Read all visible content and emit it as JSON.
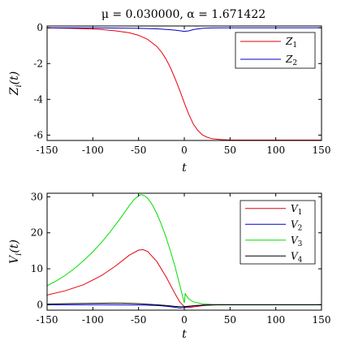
{
  "title": {
    "mu_label": "μ = 0.030000",
    "alpha_label": "α = 1.671422"
  },
  "chart_data": [
    {
      "type": "line",
      "xlabel": "t",
      "ylabel": "Z_i(t)",
      "xlim": [
        -150,
        150
      ],
      "ylim": [
        -6.3,
        0.1
      ],
      "xticks": [
        -150,
        -100,
        -50,
        0,
        50,
        100,
        150
      ],
      "yticks": [
        0,
        -2,
        -4,
        -6
      ],
      "xtick_labels": [
        "-150",
        "-100",
        "-50",
        "0",
        "50",
        "100",
        "150"
      ],
      "ytick_labels": [
        "0",
        "-2",
        "-4",
        "-6"
      ],
      "legend": "top-right",
      "series": [
        {
          "name": "Z",
          "sub": "1",
          "color": "#e8000b",
          "x": [
            -150,
            -125,
            -100,
            -90,
            -75,
            -60,
            -50,
            -40,
            -30,
            -25,
            -20,
            -15,
            -10,
            -5,
            0,
            5,
            10,
            15,
            20,
            25,
            30,
            40,
            50,
            75,
            100,
            150
          ],
          "y": [
            -0.01,
            -0.03,
            -0.07,
            -0.1,
            -0.17,
            -0.28,
            -0.42,
            -0.65,
            -1.05,
            -1.35,
            -1.75,
            -2.25,
            -2.85,
            -3.5,
            -4.2,
            -4.85,
            -5.4,
            -5.75,
            -6.0,
            -6.12,
            -6.2,
            -6.25,
            -6.27,
            -6.28,
            -6.28,
            -6.28
          ]
        },
        {
          "name": "Z",
          "sub": "2",
          "color": "#0000c8",
          "x": [
            -150,
            -100,
            -50,
            -30,
            -20,
            -10,
            0,
            5,
            10,
            20,
            30,
            50,
            100,
            150
          ],
          "y": [
            0,
            -0.005,
            -0.03,
            -0.06,
            -0.09,
            -0.13,
            -0.2,
            -0.17,
            -0.1,
            -0.03,
            -0.01,
            0,
            0,
            0
          ]
        }
      ]
    },
    {
      "type": "line",
      "xlabel": "t",
      "ylabel": "V_i(t)",
      "xlim": [
        -150,
        150
      ],
      "ylim": [
        -1.5,
        31
      ],
      "xticks": [
        -150,
        -100,
        -50,
        0,
        50,
        100,
        150
      ],
      "yticks": [
        0,
        10,
        20,
        30
      ],
      "xtick_labels": [
        "-150",
        "-100",
        "-50",
        "0",
        "50",
        "100",
        "150"
      ],
      "ytick_labels": [
        "0",
        "10",
        "20",
        "30"
      ],
      "legend": "top-right",
      "series": [
        {
          "name": "V",
          "sub": "1",
          "color": "#e8000b",
          "x": [
            -150,
            -130,
            -110,
            -90,
            -75,
            -60,
            -50,
            -45,
            -40,
            -30,
            -20,
            -10,
            -5,
            0,
            5,
            10,
            20,
            30,
            40,
            60,
            100,
            150
          ],
          "y": [
            2.7,
            3.9,
            5.6,
            8.2,
            10.8,
            13.8,
            15.2,
            15.3,
            14.8,
            12.0,
            7.8,
            3.0,
            0.8,
            -0.5,
            -0.8,
            -0.6,
            -0.25,
            -0.05,
            0,
            0,
            0,
            0
          ]
        },
        {
          "name": "V",
          "sub": "2",
          "color": "#0000c8",
          "x": [
            -150,
            -100,
            -50,
            -30,
            -20,
            -10,
            -5,
            0,
            5,
            10,
            20,
            40,
            100,
            150
          ],
          "y": [
            0,
            0,
            -0.05,
            -0.2,
            -0.4,
            -0.7,
            -0.9,
            -0.8,
            -0.5,
            -0.3,
            -0.1,
            0,
            0,
            0
          ]
        },
        {
          "name": "V",
          "sub": "3",
          "color": "#00e000",
          "x": [
            -150,
            -140,
            -130,
            -120,
            -110,
            -100,
            -90,
            -80,
            -70,
            -60,
            -55,
            -50,
            -47,
            -44,
            -40,
            -35,
            -30,
            -25,
            -20,
            -15,
            -10,
            -5,
            0,
            1,
            2,
            5,
            10,
            20,
            30,
            40,
            60,
            100,
            150
          ],
          "y": [
            5.3,
            6.6,
            8.2,
            10.1,
            12.3,
            14.7,
            17.5,
            20.6,
            24.0,
            27.6,
            29.2,
            30.3,
            30.6,
            30.4,
            29.6,
            27.8,
            25.3,
            22.3,
            18.8,
            14.8,
            10.5,
            5.5,
            0.5,
            3.2,
            2.6,
            1.6,
            0.8,
            0.25,
            0.08,
            0.02,
            0,
            0,
            0
          ]
        },
        {
          "name": "V",
          "sub": "4",
          "color": "#000000",
          "x": [
            -150,
            -125,
            -100,
            -80,
            -70,
            -60,
            -50,
            -40,
            -30,
            -20,
            -10,
            -5,
            0,
            5,
            10,
            20,
            30,
            40,
            60,
            100,
            150
          ],
          "y": [
            0.2,
            0.3,
            0.4,
            0.45,
            0.45,
            0.4,
            0.3,
            0.15,
            0.0,
            -0.2,
            -0.45,
            -0.55,
            -0.5,
            -0.4,
            -0.3,
            -0.12,
            -0.04,
            0,
            0,
            0,
            0
          ]
        }
      ]
    }
  ]
}
